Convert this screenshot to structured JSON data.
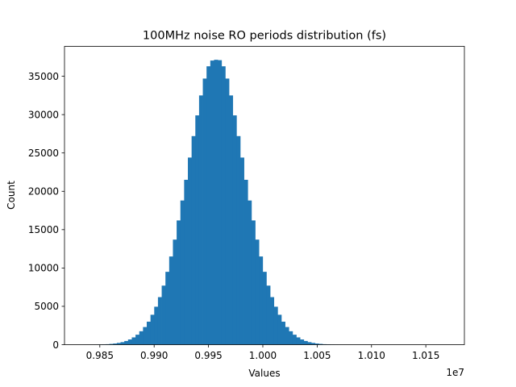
{
  "chart_data": {
    "type": "bar",
    "title": "100MHz noise RO periods distribution (fs)",
    "xlabel": "Values",
    "ylabel": "Count",
    "x_offset_label": "1e7",
    "xlim": [
      0.98175,
      1.01855
    ],
    "ylim": [
      0,
      38900
    ],
    "x_ticks": [
      0.985,
      0.99,
      0.995,
      1.0,
      1.005,
      1.01,
      1.015
    ],
    "x_tick_labels": [
      "0.985",
      "0.990",
      "0.995",
      "1.000",
      "1.005",
      "1.010",
      "1.015"
    ],
    "y_ticks": [
      0,
      5000,
      10000,
      15000,
      20000,
      25000,
      30000,
      35000
    ],
    "y_tick_labels": [
      "0",
      "5000",
      "10000",
      "15000",
      "20000",
      "25000",
      "30000",
      "35000"
    ],
    "bar_color": "#1f77b4",
    "bin_start": 0.98347,
    "bin_width": 0.000344,
    "values": [
      2,
      5,
      8,
      14,
      22,
      40,
      60,
      100,
      150,
      230,
      330,
      480,
      680,
      950,
      1300,
      1750,
      2300,
      3000,
      3900,
      4950,
      6200,
      7700,
      9500,
      11500,
      13700,
      16200,
      18800,
      21500,
      24400,
      27200,
      29900,
      32500,
      34700,
      36300,
      37050,
      37150,
      37100,
      36300,
      34700,
      32500,
      29900,
      27200,
      24400,
      21500,
      18800,
      16200,
      13700,
      11500,
      9500,
      7700,
      6200,
      4950,
      3900,
      3000,
      2300,
      1750,
      1300,
      950,
      680,
      480,
      330,
      230,
      150,
      100,
      60,
      40,
      22,
      14,
      8,
      5,
      3,
      2,
      1,
      1
    ]
  }
}
